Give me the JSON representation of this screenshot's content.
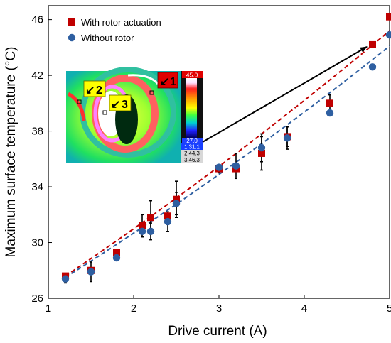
{
  "chart_data": {
    "type": "scatter",
    "xlabel": "Drive current (A)",
    "ylabel": "Maximum surface temperature (°C)",
    "xlim": [
      1,
      5
    ],
    "ylim": [
      26,
      47
    ],
    "xticks": [
      1,
      2,
      3,
      4,
      5
    ],
    "yticks": [
      26,
      30,
      34,
      38,
      42,
      46
    ],
    "legend_position": "top-left",
    "series": [
      {
        "name": "With rotor actuation",
        "marker": "square",
        "color": "#c00000",
        "x": [
          1.2,
          1.5,
          1.8,
          2.1,
          2.2,
          2.4,
          2.5,
          3.0,
          3.2,
          3.5,
          3.8,
          4.3,
          4.8,
          5.0
        ],
        "y": [
          27.6,
          28.0,
          29.3,
          31.2,
          31.8,
          31.9,
          33.1,
          35.3,
          35.3,
          36.4,
          37.6,
          40.0,
          44.2,
          46.2
        ],
        "error": [
          0.0,
          0.0,
          0.0,
          0.8,
          1.2,
          0.0,
          1.3,
          0.3,
          0.0,
          1.2,
          0.7,
          0.6,
          0.0,
          0.0
        ],
        "fit": [
          [
            1.2,
            27.6
          ],
          [
            5.0,
            45.2
          ]
        ]
      },
      {
        "name": "Without rotor",
        "marker": "circle",
        "color": "#2e5fa1",
        "x": [
          1.2,
          1.5,
          1.8,
          2.1,
          2.2,
          2.4,
          2.5,
          3.0,
          3.2,
          3.5,
          3.8,
          4.3,
          4.8,
          5.0
        ],
        "y": [
          27.4,
          27.9,
          28.9,
          30.8,
          30.8,
          31.5,
          32.8,
          35.4,
          35.5,
          36.8,
          37.5,
          39.3,
          42.6,
          44.9
        ],
        "error": [
          0.3,
          0.7,
          0.0,
          0.0,
          0.6,
          0.7,
          0.8,
          0.0,
          0.9,
          1.0,
          0.8,
          0.0,
          0.0,
          0.0
        ],
        "fit": [
          [
            1.2,
            27.5
          ],
          [
            5.0,
            44.1
          ]
        ]
      }
    ],
    "inset": {
      "scale_max": "45.0",
      "scale_min": "27.0",
      "readings": [
        "1:31.1",
        "2:44.3",
        "3:46.3"
      ],
      "markers": [
        "1",
        "2",
        "3"
      ],
      "arrow_target": [
        4.8,
        44.2
      ]
    }
  }
}
